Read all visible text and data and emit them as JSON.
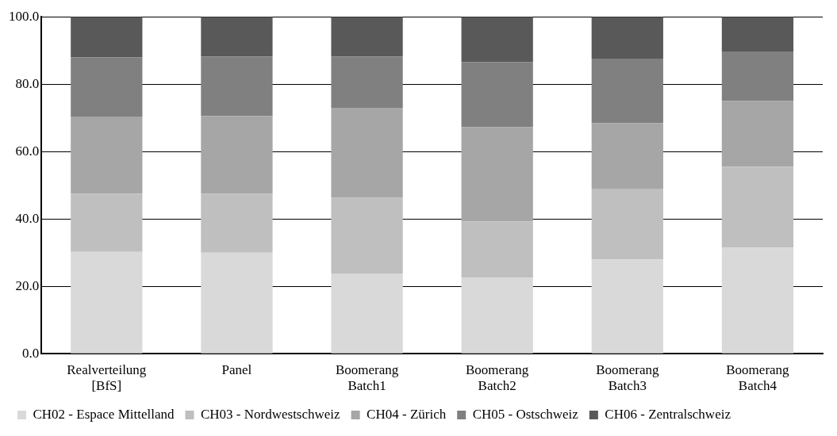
{
  "chart_data": {
    "type": "bar",
    "stacked": true,
    "categories": [
      "Realverteilung [BfS]",
      "Panel",
      "Boomerang Batch1",
      "Boomerang Batch2",
      "Boomerang Batch3",
      "Boomerang Batch4"
    ],
    "series": [
      {
        "name": "CH02 - Espace Mittelland",
        "color": "#d9d9d9",
        "values": [
          30.2,
          30.0,
          23.8,
          22.5,
          28.0,
          31.5
        ]
      },
      {
        "name": "CH03 - Nordwestschweiz",
        "color": "#bfbfbf",
        "values": [
          17.3,
          17.5,
          22.5,
          16.7,
          20.8,
          24.0
        ]
      },
      {
        "name": "CH04 - Zürich",
        "color": "#a6a6a6",
        "values": [
          22.7,
          23.0,
          26.7,
          28.1,
          19.6,
          19.5
        ]
      },
      {
        "name": "CH05 - Ostschweiz",
        "color": "#808080",
        "values": [
          17.8,
          17.7,
          15.2,
          19.2,
          19.2,
          14.5
        ]
      },
      {
        "name": "CH06 - Zentralschweiz",
        "color": "#595959",
        "values": [
          12.0,
          11.8,
          11.8,
          13.5,
          12.4,
          10.5
        ]
      }
    ],
    "ylim": [
      0,
      100
    ],
    "yticks": [
      {
        "value": 0,
        "label": "0.0"
      },
      {
        "value": 20,
        "label": "20.0"
      },
      {
        "value": 40,
        "label": "40.0"
      },
      {
        "value": 60,
        "label": "60.0"
      },
      {
        "value": 80,
        "label": "80.0"
      },
      {
        "value": 100,
        "label": "100.0"
      }
    ],
    "grid": "y",
    "legend": "bottom"
  }
}
